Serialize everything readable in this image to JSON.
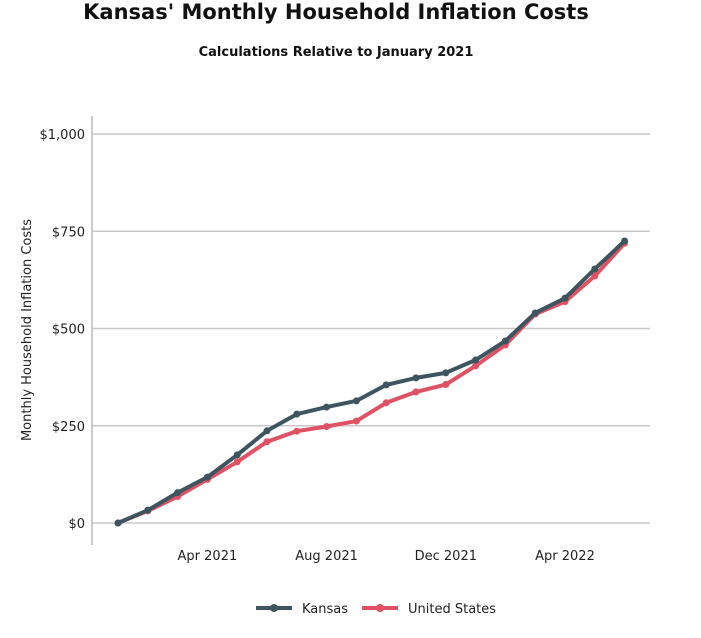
{
  "chart_data": {
    "type": "line",
    "title": "Kansas' Monthly Household Inflation Costs",
    "subtitle": "Calculations Relative to January 2021",
    "xlabel": "",
    "ylabel": "Monthly Household Inflation Costs",
    "ylim": [
      0,
      1000
    ],
    "yticks": [
      "$0",
      "$250",
      "$500",
      "$750",
      "$1,000"
    ],
    "ytick_values": [
      0,
      250,
      500,
      750,
      1000
    ],
    "x": [
      "Jan 2021",
      "Feb 2021",
      "Mar 2021",
      "Apr 2021",
      "May 2021",
      "Jun 2021",
      "Jul 2021",
      "Aug 2021",
      "Sep 2021",
      "Oct 2021",
      "Nov 2021",
      "Dec 2021",
      "Jan 2022",
      "Feb 2022",
      "Mar 2022",
      "Apr 2022",
      "May 2022",
      "Jun 2022"
    ],
    "xticks": [
      "Apr 2021",
      "Aug 2021",
      "Dec 2021",
      "Apr 2022"
    ],
    "xtick_indices": [
      3,
      7,
      11,
      15
    ],
    "grid": "horizontal",
    "legend_position": "bottom",
    "series": [
      {
        "name": "Kansas",
        "color": "#3d5560",
        "values": [
          0,
          33,
          78,
          118,
          175,
          237,
          280,
          298,
          314,
          355,
          373,
          386,
          419,
          468,
          540,
          578,
          653,
          725
        ]
      },
      {
        "name": "United States",
        "color": "#e05263",
        "values": [
          0,
          31,
          68,
          112,
          157,
          209,
          236,
          248,
          262,
          309,
          337,
          356,
          404,
          458,
          537,
          569,
          635,
          719
        ]
      }
    ]
  }
}
